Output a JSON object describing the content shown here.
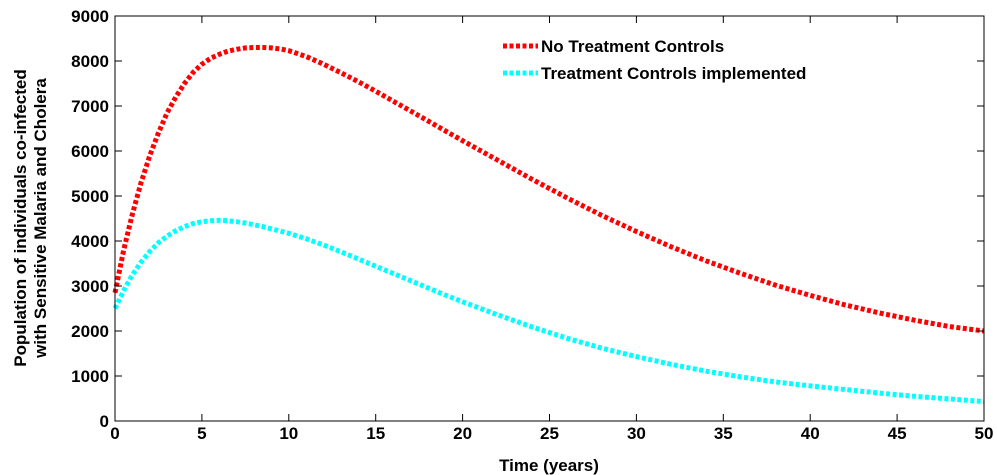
{
  "chart_data": {
    "type": "line",
    "xlabel": "Time (years)",
    "ylabel_lines": [
      "Population of individuals co-infected",
      "with Sensitive Malaria and Cholera"
    ],
    "xlim": [
      0,
      50
    ],
    "ylim": [
      0,
      9000
    ],
    "xticks": [
      0,
      5,
      10,
      15,
      20,
      25,
      30,
      35,
      40,
      45,
      50
    ],
    "yticks": [
      0,
      1000,
      2000,
      3000,
      4000,
      5000,
      6000,
      7000,
      8000,
      9000
    ],
    "grid": false,
    "legend_position": "top-right",
    "series": [
      {
        "name": "No Treatment Controls",
        "color": "#ff0000",
        "x": [
          0,
          0.5,
          1,
          1.5,
          2,
          2.5,
          3,
          3.5,
          4,
          4.5,
          5,
          5.5,
          6,
          6.5,
          7,
          7.5,
          8,
          8.5,
          9,
          9.5,
          10,
          11,
          12,
          13,
          14,
          15,
          16,
          17,
          18,
          19,
          20,
          22,
          24,
          26,
          28,
          30,
          32,
          34,
          36,
          38,
          40,
          42,
          44,
          46,
          48,
          50
        ],
        "y": [
          2850,
          3800,
          4600,
          5300,
          5900,
          6400,
          6850,
          7200,
          7500,
          7750,
          7930,
          8060,
          8150,
          8220,
          8260,
          8290,
          8300,
          8300,
          8290,
          8270,
          8230,
          8100,
          7930,
          7740,
          7540,
          7330,
          7110,
          6890,
          6670,
          6450,
          6230,
          5800,
          5370,
          4960,
          4570,
          4210,
          3870,
          3560,
          3280,
          3020,
          2790,
          2580,
          2400,
          2240,
          2100,
          2000
        ]
      },
      {
        "name": "Treatment Controls implemented",
        "color": "#00ffff",
        "x": [
          0,
          0.5,
          1,
          1.5,
          2,
          2.5,
          3,
          3.5,
          4,
          4.5,
          5,
          5.5,
          6,
          6.5,
          7,
          7.5,
          8,
          8.5,
          9,
          9.5,
          10,
          11,
          12,
          13,
          14,
          15,
          16,
          17,
          18,
          19,
          20,
          22,
          24,
          26,
          28,
          30,
          32,
          34,
          36,
          38,
          40,
          42,
          44,
          46,
          48,
          50
        ],
        "y": [
          2500,
          2900,
          3250,
          3530,
          3770,
          3960,
          4110,
          4230,
          4320,
          4390,
          4430,
          4450,
          4460,
          4450,
          4430,
          4400,
          4360,
          4320,
          4270,
          4220,
          4170,
          4050,
          3910,
          3760,
          3600,
          3440,
          3280,
          3120,
          2960,
          2800,
          2650,
          2360,
          2090,
          1840,
          1620,
          1430,
          1260,
          1110,
          980,
          870,
          780,
          700,
          620,
          550,
          490,
          430
        ]
      }
    ]
  }
}
